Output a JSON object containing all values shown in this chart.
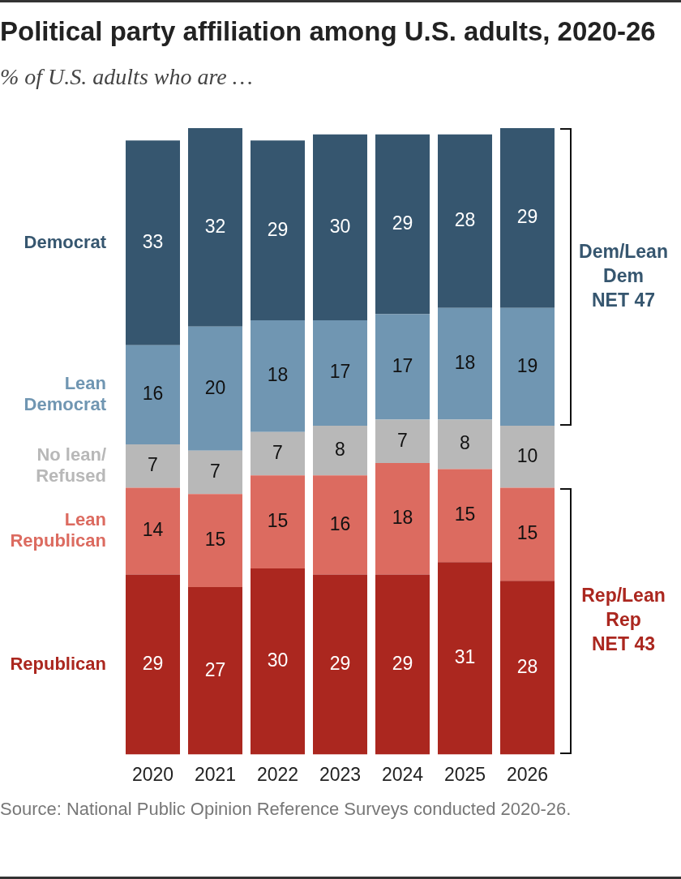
{
  "chart_data": {
    "type": "bar",
    "title": "Political party affiliation among U.S. adults, 2020-26",
    "subtitle": "% of U.S. adults who are …",
    "categories": [
      "2020",
      "2021",
      "2022",
      "2023",
      "2024",
      "2025",
      "2026"
    ],
    "stacked": true,
    "data_labels": true,
    "tick_labels": "x",
    "series": [
      {
        "name": "Republican",
        "color": "#ab271f",
        "values": [
          29,
          27,
          30,
          29,
          29,
          31,
          28
        ]
      },
      {
        "name": "Lean Republican",
        "color": "#dc6b60",
        "values": [
          14,
          15,
          15,
          16,
          18,
          15,
          15
        ]
      },
      {
        "name": "No lean/Refused",
        "color": "#b8b8b8",
        "values": [
          7,
          7,
          7,
          8,
          7,
          8,
          10
        ]
      },
      {
        "name": "Lean Democrat",
        "color": "#7096b2",
        "values": [
          16,
          20,
          18,
          17,
          17,
          18,
          19
        ]
      },
      {
        "name": "Democrat",
        "color": "#36566f",
        "values": [
          33,
          32,
          29,
          30,
          29,
          28,
          29
        ]
      }
    ],
    "annotations": [
      "Dem/Lean Dem\nNET 47",
      "Rep/Lean Rep\nNET 43",
      "Source: National Public Opinion Reference Surveys conducted 2020-26."
    ]
  }
}
